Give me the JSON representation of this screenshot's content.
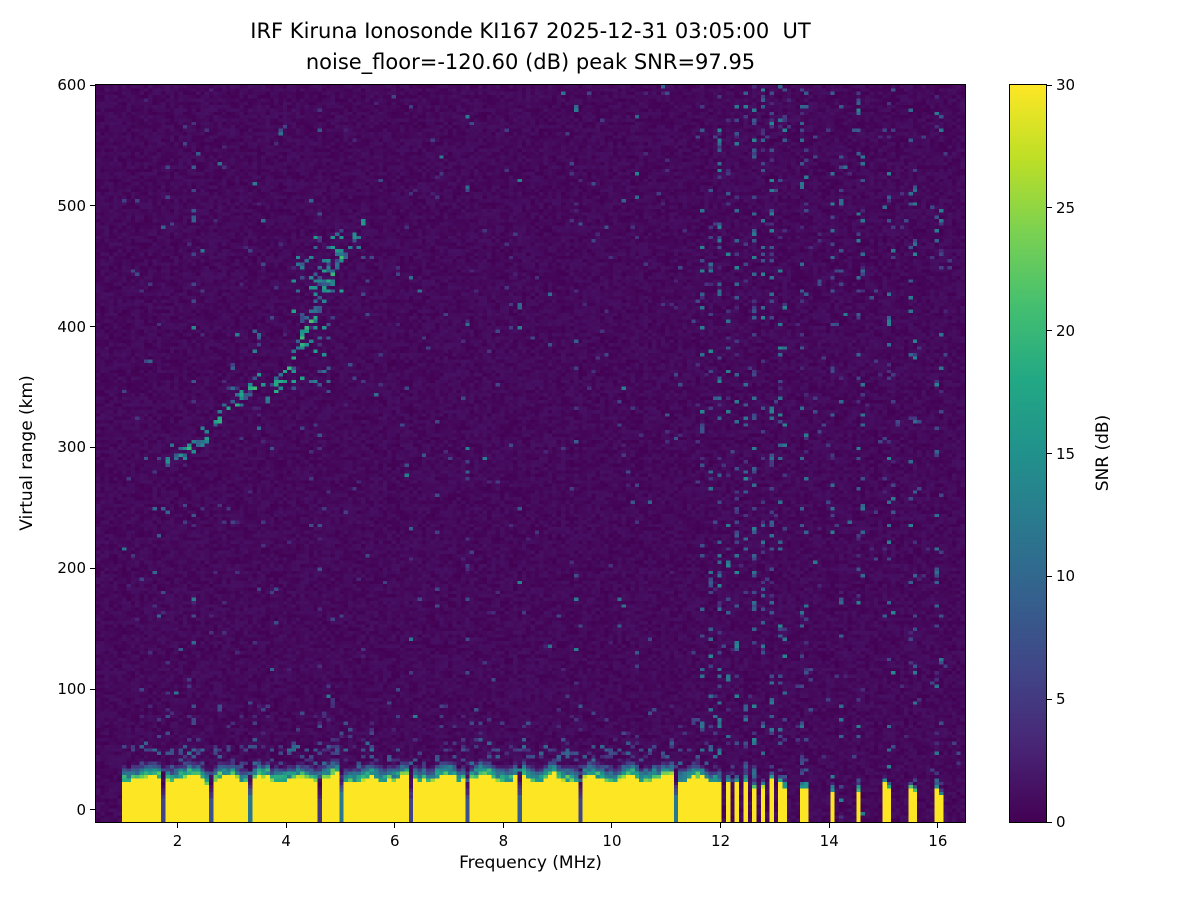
{
  "figure": {
    "title_line1": "IRF Kiruna Ionosonde KI167 2025-12-31 03:05:00  UT",
    "title_line2": "noise_floor=-120.60 (dB) peak SNR=97.95",
    "xlabel": "Frequency (MHz)",
    "ylabel": "Virtual range (km)",
    "colorbar_label": "SNR (dB)",
    "x_ticks": [
      2,
      4,
      6,
      8,
      10,
      12,
      14,
      16
    ],
    "y_ticks": [
      0,
      100,
      200,
      300,
      400,
      500,
      600
    ],
    "cb_ticks": [
      0,
      5,
      10,
      15,
      20,
      25,
      30
    ],
    "station": "KI167",
    "timestamp_ut": "2025-12-31 03:05:00",
    "noise_floor_db": -120.6,
    "peak_snr_db": 97.95
  },
  "chart_data": {
    "type": "heatmap",
    "title": "IRF Kiruna Ionosonde KI167 2025-12-31 03:05:00  UT",
    "subtitle": "noise_floor=-120.60 (dB) peak SNR=97.95",
    "xlabel": "Frequency (MHz)",
    "ylabel": "Virtual range (km)",
    "value_label": "SNR (dB)",
    "xlim": [
      0.5,
      16.5
    ],
    "ylim": [
      -10,
      600
    ],
    "zlim": [
      0,
      30
    ],
    "data_fmin": 0.97,
    "data_fmax": 16.42,
    "grid": [
      200,
      220
    ],
    "seed": 1337,
    "colormap": "viridis",
    "colormap_anchors": [
      [
        0.0,
        "#440154"
      ],
      [
        0.1,
        "#482475"
      ],
      [
        0.2,
        "#414487"
      ],
      [
        0.3,
        "#355f8d"
      ],
      [
        0.4,
        "#2a788e"
      ],
      [
        0.5,
        "#21918c"
      ],
      [
        0.6,
        "#22a884"
      ],
      [
        0.7,
        "#44bf70"
      ],
      [
        0.8,
        "#7ad151"
      ],
      [
        0.9,
        "#bddf26"
      ],
      [
        1.0,
        "#fde725"
      ]
    ],
    "background_noise_db": [
      0,
      1.4
    ],
    "ground_clutter": {
      "segments": [
        {
          "f0": 0.97,
          "f1": 11.62,
          "top": 26,
          "fringe": 13
        },
        {
          "f0": 11.66,
          "f1": 11.74,
          "top": 24,
          "fringe": 9
        },
        {
          "f0": 11.82,
          "f1": 11.9,
          "top": 24,
          "fringe": 9
        },
        {
          "f0": 11.97,
          "f1": 12.05,
          "top": 23,
          "fringe": 9
        },
        {
          "f0": 12.12,
          "f1": 12.2,
          "top": 24,
          "fringe": 8
        },
        {
          "f0": 12.27,
          "f1": 12.34,
          "top": 22,
          "fringe": 8
        },
        {
          "f0": 12.42,
          "f1": 12.49,
          "top": 23,
          "fringe": 8
        },
        {
          "f0": 12.57,
          "f1": 12.64,
          "top": 22,
          "fringe": 8
        },
        {
          "f0": 12.72,
          "f1": 12.79,
          "top": 21,
          "fringe": 8
        },
        {
          "f0": 12.88,
          "f1": 12.95,
          "top": 22,
          "fringe": 8
        },
        {
          "f0": 13.04,
          "f1": 13.11,
          "top": 20,
          "fringe": 7
        },
        {
          "f0": 13.17,
          "f1": 13.23,
          "top": 19,
          "fringe": 7
        },
        {
          "f0": 13.43,
          "f1": 13.5,
          "top": 20,
          "fringe": 7
        },
        {
          "f0": 13.54,
          "f1": 13.6,
          "top": 17,
          "fringe": 6
        },
        {
          "f0": 14.02,
          "f1": 14.1,
          "top": 19,
          "fringe": 7
        },
        {
          "f0": 14.47,
          "f1": 14.55,
          "top": 19,
          "fringe": 7
        },
        {
          "f0": 15.02,
          "f1": 15.1,
          "top": 18,
          "fringe": 6
        },
        {
          "f0": 15.46,
          "f1": 15.53,
          "top": 18,
          "fringe": 6
        },
        {
          "f0": 15.57,
          "f1": 15.63,
          "top": 15,
          "fringe": 6
        },
        {
          "f0": 15.92,
          "f1": 15.99,
          "top": 18,
          "fringe": 6
        },
        {
          "f0": 16.05,
          "f1": 16.12,
          "top": 16,
          "fringe": 6
        }
      ],
      "gaps": [
        {
          "f": 1.73,
          "w": 0.06,
          "cut": 0.35,
          "inten": 0.2
        },
        {
          "f": 2.62,
          "w": 0.05,
          "cut": 0.4,
          "inten": 0.25
        },
        {
          "f": 3.34,
          "w": 0.04,
          "cut": 0.5,
          "inten": 0.4
        },
        {
          "f": 3.62,
          "w": 0.06,
          "cut": 0.35,
          "inten": 0.2
        },
        {
          "f": 4.62,
          "w": 0.07,
          "cut": 0.3,
          "inten": 0.15
        },
        {
          "f": 5.02,
          "w": 0.04,
          "cut": 0.5,
          "inten": 0.4
        },
        {
          "f": 6.3,
          "w": 0.06,
          "cut": 0.4,
          "inten": 0.2
        },
        {
          "f": 7.32,
          "w": 0.05,
          "cut": 0.4,
          "inten": 0.25
        },
        {
          "f": 8.28,
          "w": 0.05,
          "cut": 0.45,
          "inten": 0.3
        },
        {
          "f": 9.4,
          "w": 0.06,
          "cut": 0.4,
          "inten": 0.2
        },
        {
          "f": 10.5,
          "w": 0.06,
          "cut": 0.4,
          "inten": 0.25
        },
        {
          "f": 11.2,
          "w": 0.04,
          "cut": 0.5,
          "inten": 0.4
        }
      ]
    },
    "echo_trace_segments": [
      {
        "points": [
          [
            1.78,
            284
          ],
          [
            2.1,
            297
          ],
          [
            2.5,
            311
          ],
          [
            2.9,
            329
          ],
          [
            3.3,
            346
          ],
          [
            3.7,
            362
          ]
        ],
        "thickness": 17,
        "density": 0.5,
        "v0": 7,
        "v1": 22
      },
      {
        "points": [
          [
            3.65,
            340
          ],
          [
            3.95,
            356
          ],
          [
            4.2,
            377
          ],
          [
            4.45,
            404
          ],
          [
            4.7,
            431
          ],
          [
            4.95,
            451
          ],
          [
            5.2,
            467
          ],
          [
            5.45,
            480
          ]
        ],
        "thickness": 22,
        "density": 0.45,
        "v0": 7,
        "v1": 23
      },
      {
        "points": [
          [
            5.48,
            452
          ],
          [
            5.72,
            472
          ],
          [
            5.9,
            487
          ]
        ],
        "thickness": 14,
        "density": 0.18,
        "v0": 6,
        "v1": 16
      }
    ],
    "echo_clusters": [
      {
        "f": [
          2.95,
          3.15
        ],
        "h": [
          335,
          396
        ],
        "density": 0.1,
        "v0": 5,
        "v1": 15
      },
      {
        "f": [
          3.35,
          3.55
        ],
        "h": [
          345,
          406
        ],
        "density": 0.09,
        "v0": 5,
        "v1": 15
      },
      {
        "f": [
          4.12,
          4.82
        ],
        "h": [
          345,
          462
        ],
        "density": 0.13,
        "v0": 6,
        "v1": 18
      },
      {
        "f": [
          4.5,
          5.05
        ],
        "h": [
          428,
          478
        ],
        "density": 0.15,
        "v0": 6,
        "v1": 18
      },
      {
        "f": [
          1.55,
          1.82
        ],
        "h": [
          195,
          286
        ],
        "density": 0.045,
        "v0": 4,
        "v1": 12
      },
      {
        "f": [
          2.0,
          2.6
        ],
        "h": [
          240,
          300
        ],
        "density": 0.03,
        "v0": 4,
        "v1": 10
      }
    ],
    "noise_stripes": [
      {
        "f": 2.28,
        "d": 0.05
      },
      {
        "f": 3.02,
        "d": 0.03
      },
      {
        "f": 3.46,
        "d": 0.03
      },
      {
        "f": 4.62,
        "d": 0.08,
        "v1": 10
      },
      {
        "f": 5.3,
        "d": 0.03
      },
      {
        "f": 5.86,
        "d": 0.05
      },
      {
        "f": 6.3,
        "d": 0.04
      },
      {
        "f": 7.32,
        "d": 0.05
      },
      {
        "f": 8.3,
        "d": 0.03
      },
      {
        "f": 9.36,
        "d": 0.05
      },
      {
        "f": 10.46,
        "d": 0.04
      },
      {
        "f": 11.02,
        "d": 0.03
      },
      {
        "f": 11.7,
        "d": 0.15
      },
      {
        "f": 11.86,
        "d": 0.12
      },
      {
        "f": 12.01,
        "d": 0.17
      },
      {
        "f": 12.16,
        "d": 0.12
      },
      {
        "f": 12.31,
        "d": 0.15
      },
      {
        "f": 12.46,
        "d": 0.12
      },
      {
        "f": 12.61,
        "d": 0.16
      },
      {
        "f": 12.76,
        "d": 0.12
      },
      {
        "f": 12.91,
        "d": 0.14
      },
      {
        "f": 13.07,
        "d": 0.12
      },
      {
        "f": 13.21,
        "d": 0.1
      },
      {
        "f": 13.46,
        "d": 0.14
      },
      {
        "f": 13.58,
        "d": 0.1
      },
      {
        "f": 14.06,
        "d": 0.12
      },
      {
        "f": 14.2,
        "d": 0.06
      },
      {
        "f": 14.51,
        "d": 0.12
      },
      {
        "f": 14.63,
        "d": 0.07
      },
      {
        "f": 15.06,
        "d": 0.12
      },
      {
        "f": 15.2,
        "d": 0.05
      },
      {
        "f": 15.5,
        "d": 0.11
      },
      {
        "f": 15.62,
        "d": 0.08
      },
      {
        "f": 15.96,
        "d": 0.12
      },
      {
        "f": 16.09,
        "d": 0.09
      }
    ]
  }
}
